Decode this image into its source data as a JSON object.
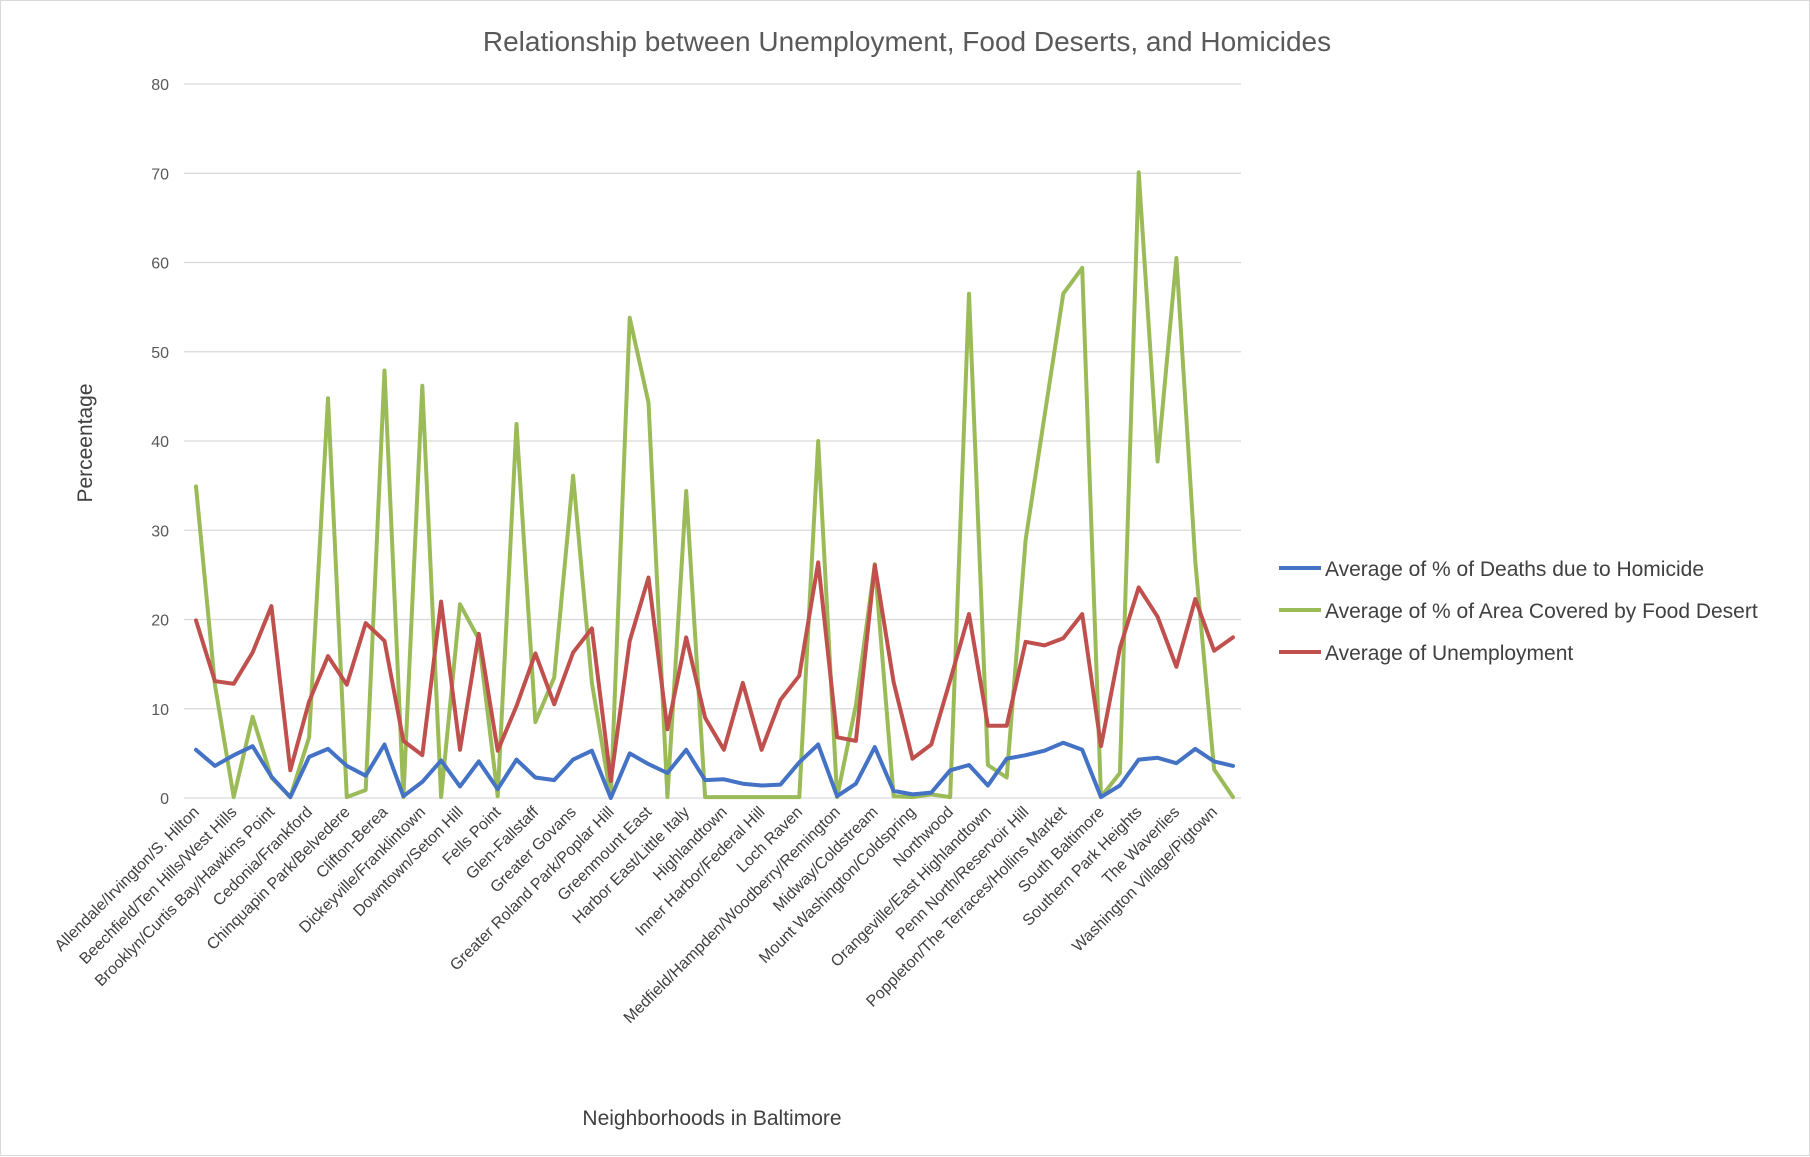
{
  "chart_data": {
    "type": "line",
    "title": "Relationship between Unemployment,  Food Deserts, and Homicides",
    "xlabel": "Neighborhoods in Baltimore",
    "ylabel": "Perceentage",
    "ylim": [
      0,
      80
    ],
    "yticks": [
      0,
      10,
      20,
      30,
      40,
      50,
      60,
      70,
      80
    ],
    "grid": "horizontal",
    "legend_position": "right",
    "x": [
      "Allendale/Irvington/S. Hilton",
      "",
      "Beechfield/Ten Hills/West Hills",
      "",
      "Brooklyn/Curtis Bay/Hawkins Point",
      "",
      "Cedonia/Frankford",
      "",
      "Chinquapin Park/Belvedere",
      "",
      "Clifton-Berea",
      "",
      "Dickeyville/Franklintown",
      "",
      "Downtown/Seton Hill",
      "",
      "Fells Point",
      "",
      "Glen-Fallstaff",
      "",
      "Greater Govans",
      "",
      "Greater Roland Park/Poplar Hill",
      "",
      "Greenmount East",
      "",
      "Harbor East/Little Italy",
      "",
      "Highlandtown",
      "",
      "Inner Harbor/Federal Hill",
      "",
      "Loch Raven",
      "",
      "Medfield/Hampden/Woodberry/Remington",
      "",
      "Midway/Coldstream",
      "",
      "Mount Washington/Coldspring",
      "",
      "Northwood",
      "",
      "Orangeville/East Highlandtown",
      "",
      "Penn North/Reservoir Hill",
      "",
      "Poppleton/The Terraces/Hollins Market",
      "",
      "South Baltimore",
      "",
      "Southern Park Heights",
      "",
      "The Waverlies",
      "",
      "Washington Village/Pigtown",
      ""
    ],
    "series": [
      {
        "name": "Average of % of Deaths due to Homicide",
        "color": "#4472c4",
        "values": [
          5.4,
          3.6,
          4.8,
          5.8,
          2.4,
          0.1,
          4.6,
          5.5,
          3.6,
          2.5,
          6.0,
          0.2,
          1.8,
          4.2,
          1.3,
          4.1,
          1.0,
          4.3,
          2.3,
          2.0,
          4.3,
          5.3,
          0.0,
          5.0,
          3.8,
          2.8,
          5.4,
          2.0,
          2.1,
          1.6,
          1.4,
          1.5,
          4.0,
          6.0,
          0.2,
          1.6,
          5.7,
          0.8,
          0.4,
          0.6,
          3.1,
          3.7,
          1.4,
          4.4,
          4.8,
          5.3,
          6.2,
          5.4,
          0.1,
          1.4,
          4.3,
          4.5,
          3.9,
          5.5,
          4.1,
          3.6
        ]
      },
      {
        "name": "Average of % of Area Covered by Food Desert",
        "color": "#9bbb59",
        "values": [
          34.9,
          12.7,
          0.1,
          9.1,
          2.3,
          0.1,
          6.8,
          44.8,
          0.1,
          0.9,
          47.9,
          0.1,
          46.2,
          0.1,
          21.7,
          17.8,
          0.2,
          41.9,
          8.5,
          13.5,
          36.1,
          12.9,
          0.1,
          53.8,
          44.3,
          0.1,
          34.4,
          0.1,
          0.1,
          0.1,
          0.1,
          0.1,
          0.1,
          40.0,
          0.1,
          10.4,
          26.2,
          0.2,
          0.1,
          0.4,
          0.1,
          56.5,
          3.7,
          2.3,
          28.9,
          42.8,
          56.5,
          59.4,
          0.1,
          2.8,
          70.1,
          37.7,
          60.5,
          26.5,
          3.2,
          0.1
        ]
      },
      {
        "name": "Average of Unemployment",
        "color": "#c0504d",
        "values": [
          19.9,
          13.1,
          12.8,
          16.3,
          21.5,
          3.1,
          10.8,
          15.9,
          12.7,
          19.6,
          17.6,
          6.4,
          4.8,
          22.0,
          5.4,
          18.4,
          5.3,
          10.3,
          16.2,
          10.5,
          16.3,
          19.0,
          1.9,
          17.6,
          24.7,
          7.7,
          18.0,
          9.0,
          5.4,
          12.9,
          5.4,
          11.0,
          13.7,
          26.4,
          6.8,
          6.4,
          26.1,
          13.0,
          4.4,
          6.0,
          13.2,
          20.6,
          8.1,
          8.1,
          17.5,
          17.1,
          17.9,
          20.6,
          5.8,
          16.8,
          23.6,
          20.3,
          14.7,
          22.3,
          16.5,
          18.0
        ]
      }
    ]
  }
}
